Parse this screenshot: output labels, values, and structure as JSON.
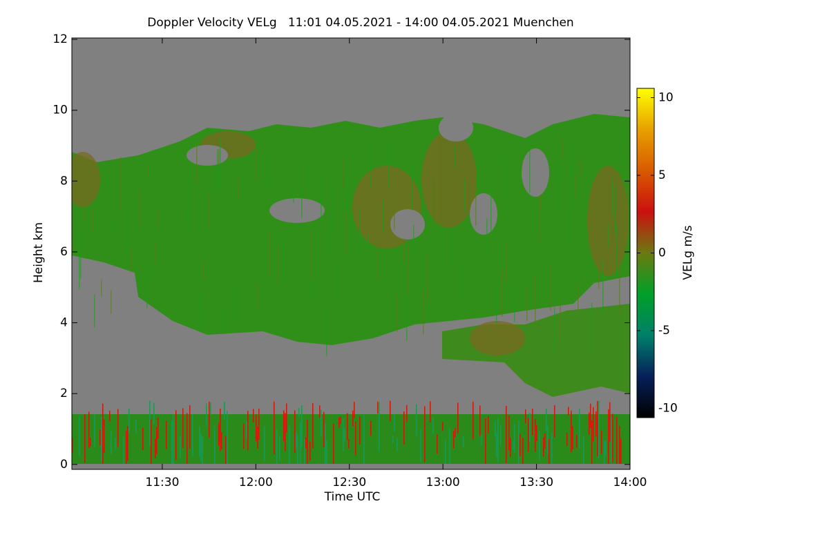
{
  "chart_data": {
    "type": "heatmap",
    "title": "Doppler Velocity VELg   11:01 04.05.2021 - 14:00 04.05.2021 Muenchen",
    "x_label": "Time UTC",
    "y_label": "Height km",
    "colorbar_label": "VELg m/s",
    "xlim": [
      661,
      840
    ],
    "xticks": [
      {
        "value": 690,
        "label": "11:30"
      },
      {
        "value": 720,
        "label": "12:00"
      },
      {
        "value": 750,
        "label": "12:30"
      },
      {
        "value": 780,
        "label": "13:00"
      },
      {
        "value": 810,
        "label": "13:30"
      },
      {
        "value": 840,
        "label": "14:00"
      }
    ],
    "ylim": [
      -0.14,
      12.04
    ],
    "yticks": [
      0,
      2,
      4,
      6,
      8,
      10,
      12
    ],
    "clim": [
      -10.6,
      10.6
    ],
    "cticks": [
      -10,
      -5,
      0,
      5,
      10
    ],
    "colormap": [
      "#000000",
      "#06205a",
      "#00806a",
      "#00a028",
      "#6a7a10",
      "#cc1010",
      "#d85a00",
      "#e8a000",
      "#ffff00"
    ]
  }
}
